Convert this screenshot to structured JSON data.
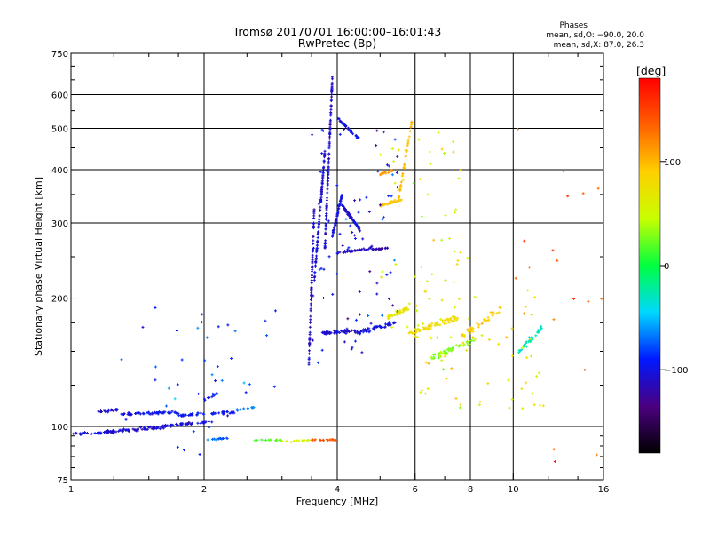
{
  "chart_data": {
    "type": "scatter",
    "title": "Tromsø 20170701 16:00:00–16:01:43",
    "subtitle": "RwPretec (Bp)",
    "xlabel": "Frequency [MHz]",
    "ylabel": "Stationary phase Virtual Height [km]",
    "x_scale": "log",
    "y_scale": "log",
    "xlim": [
      1,
      16
    ],
    "ylim": [
      75,
      750
    ],
    "x_ticks": [
      1,
      2,
      4,
      6,
      8,
      10,
      16
    ],
    "x_tick_labels": [
      "1",
      "2",
      "4",
      "6",
      "8",
      "10",
      "16"
    ],
    "y_ticks": [
      75,
      100,
      200,
      300,
      400,
      500,
      600,
      750
    ],
    "y_tick_labels": [
      "75",
      "100",
      "200",
      "300",
      "400",
      "500",
      "600",
      "750"
    ],
    "x_minor_ticks": [
      1.25,
      1.5,
      1.75,
      2.5,
      3,
      3.5,
      5,
      7,
      9,
      12,
      14
    ],
    "y_minor_ticks": [
      80,
      85,
      90,
      95,
      125,
      150,
      175,
      250,
      350,
      450,
      550,
      650,
      700
    ],
    "grid": true,
    "legend": {
      "heading": "Phases",
      "entries": [
        "mean, sd,O: −90.0, 20.0",
        "mean, sd,X:  87.0, 26.3"
      ],
      "placement": "top-right"
    },
    "colorbar": {
      "label": "[deg]",
      "min": -180,
      "max": 180,
      "ticks": [
        100,
        0,
        -100
      ],
      "tick_labels": [
        "100",
        "0",
        "−100"
      ],
      "stops": [
        "#000000",
        "#4b0080",
        "#0018ff",
        "#00d8ff",
        "#00ff40",
        "#c8ff00",
        "#ffd000",
        "#ff6000",
        "#ff0000"
      ]
    },
    "series": [
      {
        "traces": [
          {
            "x": [
              1.0,
              1.25
            ],
            "h": [
              96,
              97
            ],
            "n": 40,
            "phase": -100,
            "jit": 0.012
          },
          {
            "x": [
              1.2,
              1.65
            ],
            "h": [
              97,
              100
            ],
            "n": 70,
            "phase": -108,
            "jit": 0.015
          },
          {
            "x": [
              1.6,
              2.1
            ],
            "h": [
              100,
              103
            ],
            "n": 45,
            "phase": -105,
            "jit": 0.012
          },
          {
            "x": [
              1.15,
              1.3
            ],
            "h": [
              108,
              110
            ],
            "n": 25,
            "phase": -110,
            "jit": 0.012
          },
          {
            "x": [
              1.3,
              1.75
            ],
            "h": [
              107,
              108
            ],
            "n": 55,
            "phase": -100,
            "jit": 0.014
          },
          {
            "x": [
              1.75,
              2.35
            ],
            "h": [
              106,
              108
            ],
            "n": 45,
            "phase": -95,
            "jit": 0.013
          },
          {
            "x": [
              2.35,
              2.6
            ],
            "h": [
              109,
              111
            ],
            "n": 12,
            "phase": -70,
            "jit": 0.01
          },
          {
            "x": [
              2.0,
              2.15
            ],
            "h": [
              115,
              120
            ],
            "n": 12,
            "phase": -95,
            "jit": 0.012
          },
          {
            "x": [
              3.45,
              3.55
            ],
            "h": [
              140,
              330
            ],
            "n": 80,
            "phase": -110,
            "jit": 0.015
          },
          {
            "x": [
              3.55,
              3.75
            ],
            "h": [
              220,
              440
            ],
            "n": 90,
            "phase": -105,
            "jit": 0.02
          },
          {
            "x": [
              3.75,
              3.9
            ],
            "h": [
              260,
              660
            ],
            "n": 100,
            "phase": -108,
            "jit": 0.025
          },
          {
            "x": [
              3.9,
              4.1
            ],
            "h": [
              280,
              350
            ],
            "n": 60,
            "phase": -100,
            "jit": 0.02
          },
          {
            "x": [
              4.1,
              4.5
            ],
            "h": [
              330,
              290
            ],
            "n": 60,
            "phase": -105,
            "jit": 0.015
          },
          {
            "x": [
              4.0,
              4.5
            ],
            "h": [
              530,
              470
            ],
            "n": 40,
            "phase": -100,
            "jit": 0.01
          },
          {
            "x": [
              4.0,
              4.8
            ],
            "h": [
              255,
              262
            ],
            "n": 40,
            "phase": -110,
            "jit": 0.01
          },
          {
            "x": [
              4.8,
              5.2
            ],
            "h": [
              260,
              262
            ],
            "n": 20,
            "phase": -115,
            "jit": 0.006
          },
          {
            "x": [
              3.7,
              4.4
            ],
            "h": [
              165,
              168
            ],
            "n": 50,
            "phase": -110,
            "jit": 0.015
          },
          {
            "x": [
              4.4,
              5.4
            ],
            "h": [
              165,
              175
            ],
            "n": 55,
            "phase": -100,
            "jit": 0.02
          },
          {
            "x": [
              5.0,
              5.6
            ],
            "h": [
              330,
              340
            ],
            "n": 40,
            "phase": 95,
            "jit": 0.01
          },
          {
            "x": [
              5.5,
              5.9
            ],
            "h": [
              340,
              520
            ],
            "n": 40,
            "phase": 100,
            "jit": 0.015
          },
          {
            "x": [
              5.0,
              5.4
            ],
            "h": [
              390,
              400
            ],
            "n": 18,
            "phase": 110,
            "jit": 0.012
          },
          {
            "x": [
              5.2,
              5.8
            ],
            "h": [
              180,
              190
            ],
            "n": 45,
            "phase": 70,
            "jit": 0.02
          },
          {
            "x": [
              5.8,
              7.5
            ],
            "h": [
              165,
              180
            ],
            "n": 70,
            "phase": 80,
            "jit": 0.03
          },
          {
            "x": [
              6.5,
              8.2
            ],
            "h": [
              145,
              160
            ],
            "n": 50,
            "phase": 30,
            "jit": 0.025
          },
          {
            "x": [
              7.5,
              9.5
            ],
            "h": [
              160,
              190
            ],
            "n": 35,
            "phase": 90,
            "jit": 0.03
          },
          {
            "x": [
              10.3,
              11.6
            ],
            "h": [
              150,
              170
            ],
            "n": 35,
            "phase": -30,
            "jit": 0.03
          },
          {
            "x": [
              1.95,
              2.3
            ],
            "h": [
              93,
              94
            ],
            "n": 14,
            "phase": -70,
            "jit": 0.006
          },
          {
            "x": [
              2.6,
              3.0
            ],
            "h": [
              93,
              93
            ],
            "n": 16,
            "phase": 20,
            "jit": 0.006
          },
          {
            "x": [
              3.0,
              3.5
            ],
            "h": [
              92,
              93
            ],
            "n": 16,
            "phase": 60,
            "jit": 0.006
          },
          {
            "x": [
              3.5,
              4.0
            ],
            "h": [
              93,
              93
            ],
            "n": 22,
            "phase": 140,
            "jit": 0.005
          }
        ],
        "scatter": [
          {
            "x": [
              1.3,
              3.0
            ],
            "h": [
              85,
              190
            ],
            "n": 40,
            "phase": -80
          },
          {
            "x": [
              3.5,
              5.5
            ],
            "h": [
              140,
              500
            ],
            "n": 80,
            "phase": -100
          },
          {
            "x": [
              5.0,
              8.0
            ],
            "h": [
              130,
              500
            ],
            "n": 60,
            "phase": 60
          },
          {
            "x": [
              6.0,
              12.0
            ],
            "h": [
              110,
              210
            ],
            "n": 60,
            "phase": 70
          },
          {
            "x": [
              10.0,
              16.0
            ],
            "h": [
              80,
              620
            ],
            "n": 18,
            "phase": 140
          }
        ]
      }
    ]
  }
}
